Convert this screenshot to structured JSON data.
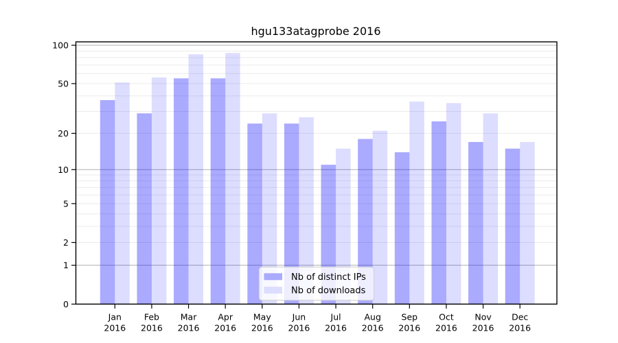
{
  "chart_data": {
    "type": "bar",
    "title": "hgu133atagprobe 2016",
    "scale": "log1p",
    "categories": [
      "Jan",
      "Feb",
      "Mar",
      "Apr",
      "May",
      "Jun",
      "Jul",
      "Aug",
      "Sep",
      "Oct",
      "Nov",
      "Dec"
    ],
    "year": "2016",
    "series": [
      {
        "name": "Nb of distinct IPs",
        "color": "#0000ff",
        "opacity": 0.333,
        "solid_color": "#aaaaff",
        "values": [
          37,
          29,
          55,
          55,
          24,
          24,
          11,
          18,
          14,
          25,
          17,
          15
        ]
      },
      {
        "name": "Nb of downloads",
        "color": "#0000ff",
        "opacity": 0.133,
        "solid_color": "#ddddff",
        "values": [
          51,
          56,
          85,
          87,
          29,
          27,
          15,
          21,
          36,
          35,
          29,
          17
        ]
      }
    ],
    "yticks": [
      0,
      1,
      2,
      5,
      10,
      20,
      50,
      100
    ],
    "ylim": [
      0,
      105
    ],
    "grid": {
      "on": true,
      "decade_lines": [
        1,
        10,
        100
      ],
      "light_lines": [
        2,
        3,
        4,
        5,
        6,
        7,
        8,
        9,
        20,
        30,
        40,
        50,
        60,
        70,
        80,
        90
      ],
      "decade_color": "#b0b0b0",
      "light_color": "#ebebeb"
    },
    "legend": {
      "position": "inside-bottom-center",
      "background": "rgba(255,255,255,0.8)",
      "border_color": "#cccccc"
    },
    "axis_color": "#000000"
  }
}
